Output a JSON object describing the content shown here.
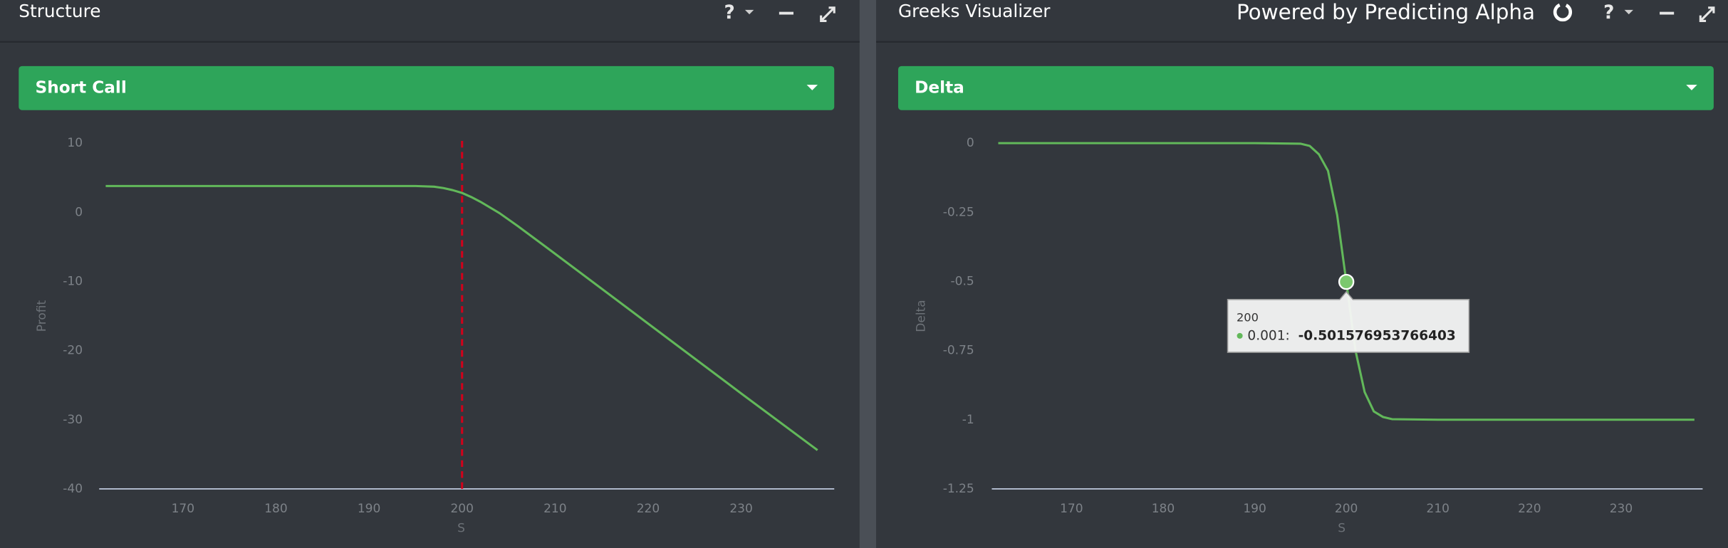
{
  "panels": [
    {
      "title": "Structure",
      "help": "?",
      "dropdown": "Short Call"
    },
    {
      "title": "Greeks Visualizer",
      "brand": "Powered by Predicting Alpha",
      "help": "?",
      "dropdown": "Delta"
    }
  ],
  "chart_data": [
    {
      "type": "line",
      "x_label": "S",
      "y_label": "Profit",
      "color": "#62b85a",
      "x": [
        161.7,
        170,
        180,
        190,
        195,
        197,
        198,
        199,
        200,
        201,
        202,
        204,
        206,
        210,
        220,
        230,
        238.2
      ],
      "values": [
        3.8,
        3.8,
        3.8,
        3.8,
        3.8,
        3.7,
        3.5,
        3.2,
        2.8,
        2.2,
        1.5,
        -0.1,
        -2.0,
        -6.0,
        -16.1,
        -26.2,
        -34.4
      ],
      "xlim": [
        161,
        240
      ],
      "ylim": [
        -40,
        10
      ],
      "xticks": [
        170,
        180,
        190,
        200,
        210,
        220,
        230
      ],
      "yticks": [
        -40,
        -30,
        -20,
        -10,
        0,
        10
      ],
      "vline": {
        "value": 200,
        "color": "#d0021b"
      }
    },
    {
      "type": "line",
      "x_label": "S",
      "y_label": "Delta",
      "color": "#62b85a",
      "x": [
        162,
        170,
        180,
        190,
        195,
        196,
        197,
        198,
        199,
        200,
        201,
        202,
        203,
        204,
        205,
        210,
        220,
        230,
        238
      ],
      "values": [
        0,
        0,
        0,
        0,
        -0.002,
        -0.01,
        -0.04,
        -0.1,
        -0.26,
        -0.501576953766403,
        -0.75,
        -0.9,
        -0.97,
        -0.99,
        -0.998,
        -1,
        -1,
        -1,
        -1
      ],
      "xlim": [
        161.3,
        238.9
      ],
      "ylim": [
        -1.25,
        0
      ],
      "xticks": [
        170,
        180,
        190,
        200,
        210,
        220,
        230
      ],
      "yticks": [
        -1.25,
        -1,
        -0.75,
        -0.5,
        -0.25,
        0
      ],
      "tooltip": {
        "x": 200,
        "label": "0.001:",
        "value": -0.501576953766403
      }
    }
  ]
}
